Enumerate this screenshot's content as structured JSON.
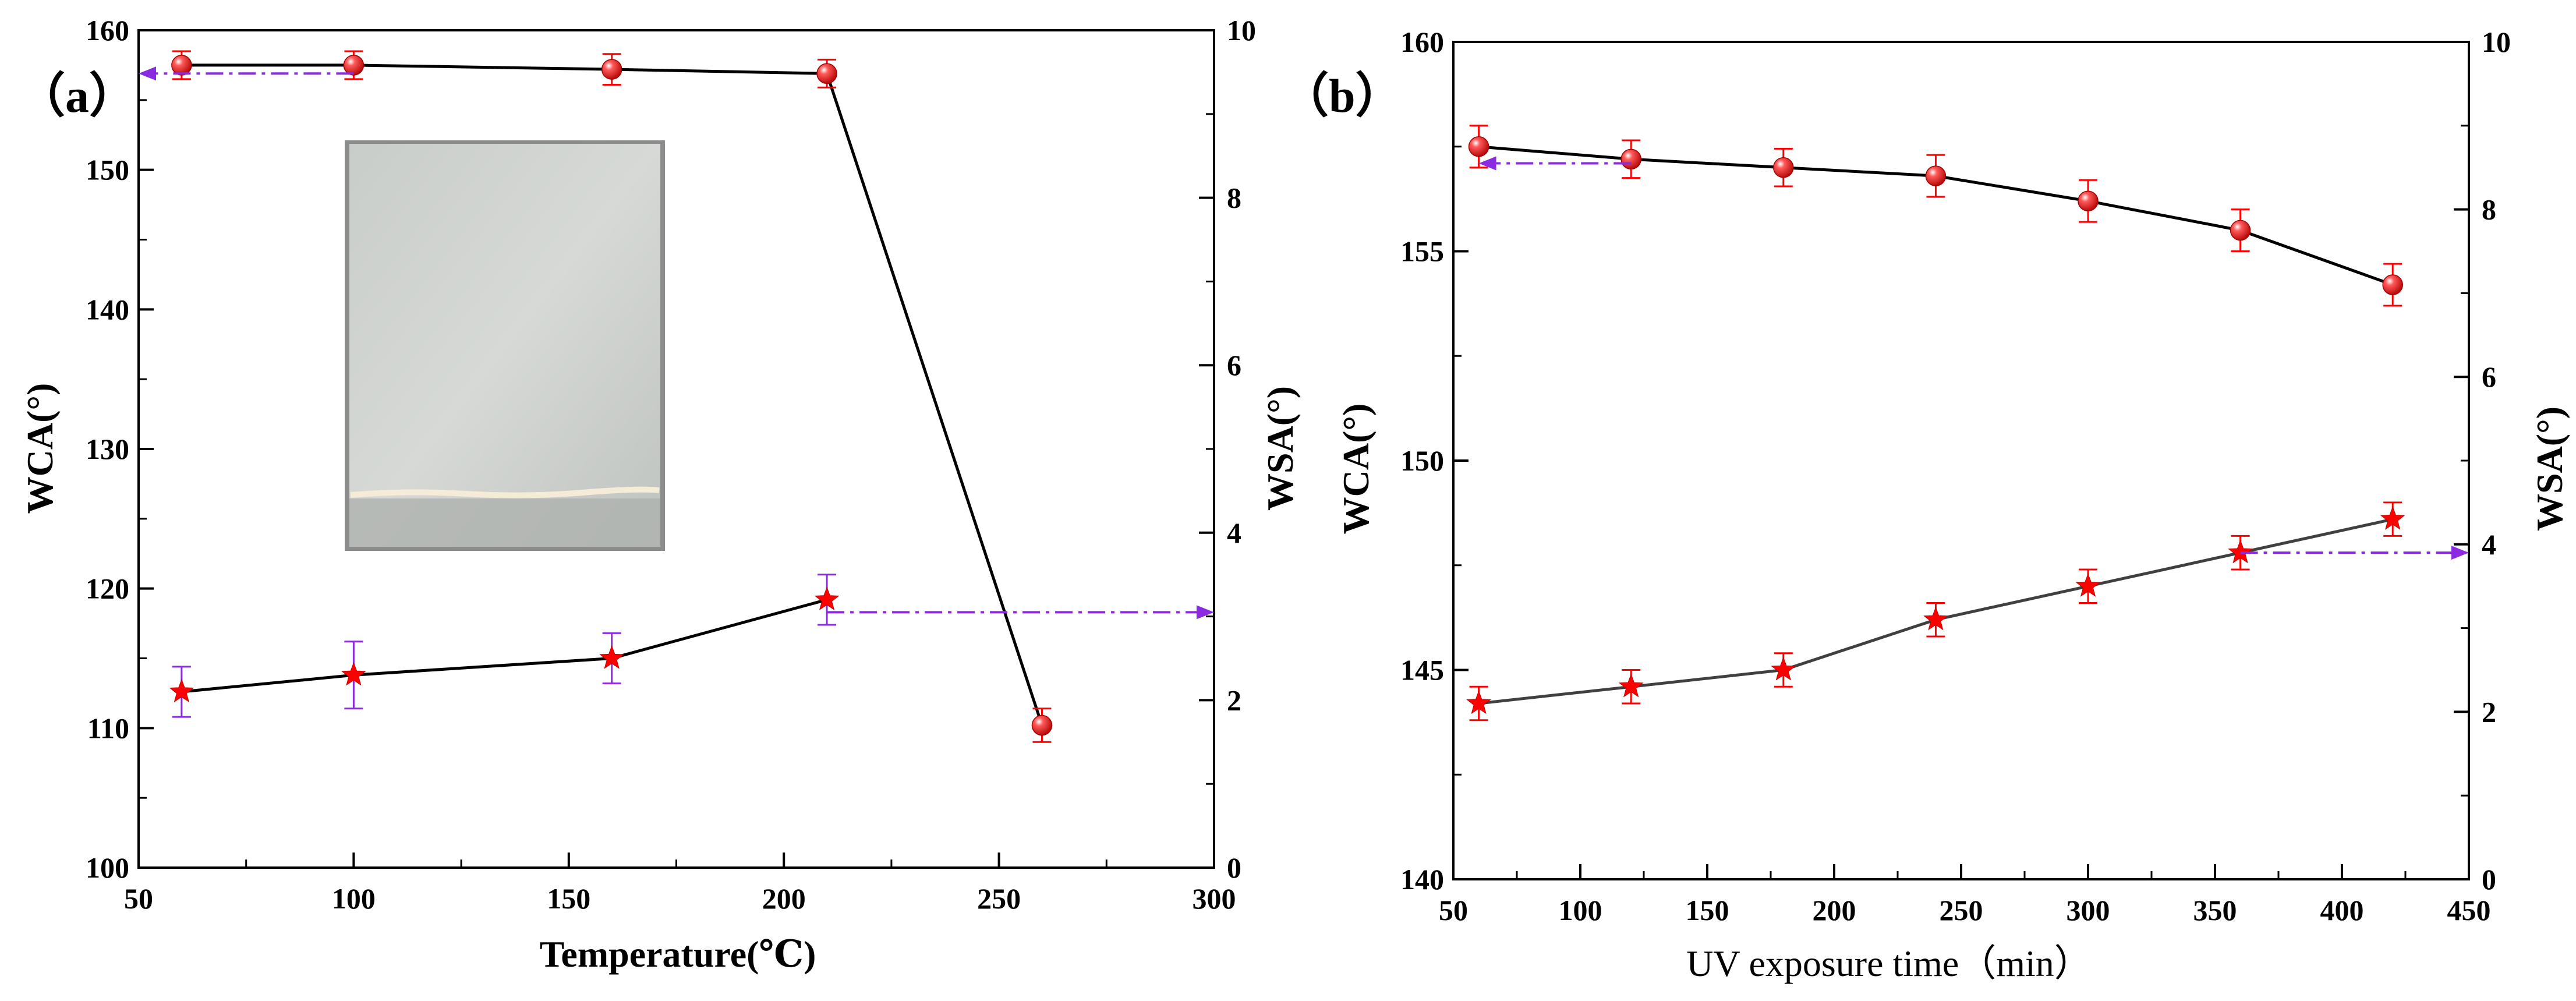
{
  "colors": {
    "axis": "#000000",
    "wca_line": "#000000",
    "wsa_line_a": "#000000",
    "wsa_line_b": "#404040",
    "marker": "#ff0000",
    "errbar_wca": "#ff0000",
    "errbar_wsa_a": "#8a2be2",
    "errbar_wsa_b": "#ff0000",
    "arrow": "#8a2be2"
  },
  "chart_data": [
    {
      "panel_label": "（a）",
      "type": "line",
      "xlabel": "Temperature(℃)",
      "ylabel_left": "WCA(°)",
      "ylabel_right": "WSA(°)",
      "xlim": [
        50,
        300
      ],
      "ylim_left": [
        100,
        160
      ],
      "ylim_right": [
        0,
        10
      ],
      "x_ticks": [
        50,
        100,
        150,
        200,
        250,
        300
      ],
      "y_ticks_left": [
        100,
        110,
        120,
        130,
        140,
        150,
        160
      ],
      "y_ticks_right": [
        0,
        2,
        4,
        6,
        8,
        10
      ],
      "series": [
        {
          "name": "WCA",
          "axis": "left",
          "marker": "circle",
          "x": [
            60,
            100,
            160,
            210,
            260
          ],
          "values": [
            157.5,
            157.5,
            157.2,
            156.9,
            110.2
          ],
          "errors": [
            1.0,
            1.0,
            1.1,
            1.0,
            1.2
          ]
        },
        {
          "name": "WSA",
          "axis": "right",
          "marker": "star",
          "x": [
            60,
            100,
            160,
            210
          ],
          "values": [
            2.1,
            2.3,
            2.5,
            3.2
          ],
          "errors": [
            0.3,
            0.4,
            0.3,
            0.3
          ]
        }
      ],
      "arrows": [
        {
          "series": "WCA",
          "direction": "left",
          "x_from": 100,
          "x_to": 50,
          "y": 156.9
        },
        {
          "series": "WSA",
          "direction": "right",
          "x_from": 210,
          "x_to": 300,
          "y": 3.05
        }
      ],
      "inset": {
        "description": "photo of coated sample"
      }
    },
    {
      "panel_label": "（b）",
      "type": "line",
      "xlabel": "UV exposure time（min）",
      "ylabel_left": "WCA(°)",
      "ylabel_right": "WSA(°)",
      "xlim": [
        50,
        450
      ],
      "ylim_left": [
        140,
        160
      ],
      "ylim_right": [
        0,
        10
      ],
      "x_ticks": [
        50,
        100,
        150,
        200,
        250,
        300,
        350,
        400,
        450
      ],
      "y_ticks_left": [
        140,
        145,
        150,
        155,
        160
      ],
      "y_ticks_right": [
        0,
        2,
        4,
        6,
        8,
        10
      ],
      "series": [
        {
          "name": "WCA",
          "axis": "left",
          "marker": "circle",
          "x": [
            60,
            120,
            180,
            240,
            300,
            360,
            420
          ],
          "values": [
            157.5,
            157.2,
            157.0,
            156.8,
            156.2,
            155.5,
            154.2
          ],
          "errors": [
            0.5,
            0.45,
            0.45,
            0.5,
            0.5,
            0.5,
            0.5
          ]
        },
        {
          "name": "WSA",
          "axis": "right",
          "marker": "star",
          "x": [
            60,
            120,
            180,
            240,
            300,
            360,
            420
          ],
          "values": [
            2.1,
            2.3,
            2.5,
            3.1,
            3.5,
            3.9,
            4.3
          ],
          "errors": [
            0.2,
            0.2,
            0.2,
            0.2,
            0.2,
            0.2,
            0.2
          ]
        }
      ],
      "arrows": [
        {
          "series": "WCA",
          "direction": "left",
          "x_from": 120,
          "x_to": 60,
          "y": 157.1
        },
        {
          "series": "WSA",
          "direction": "right",
          "x_from": 360,
          "x_to": 450,
          "y": 3.9
        }
      ]
    }
  ]
}
